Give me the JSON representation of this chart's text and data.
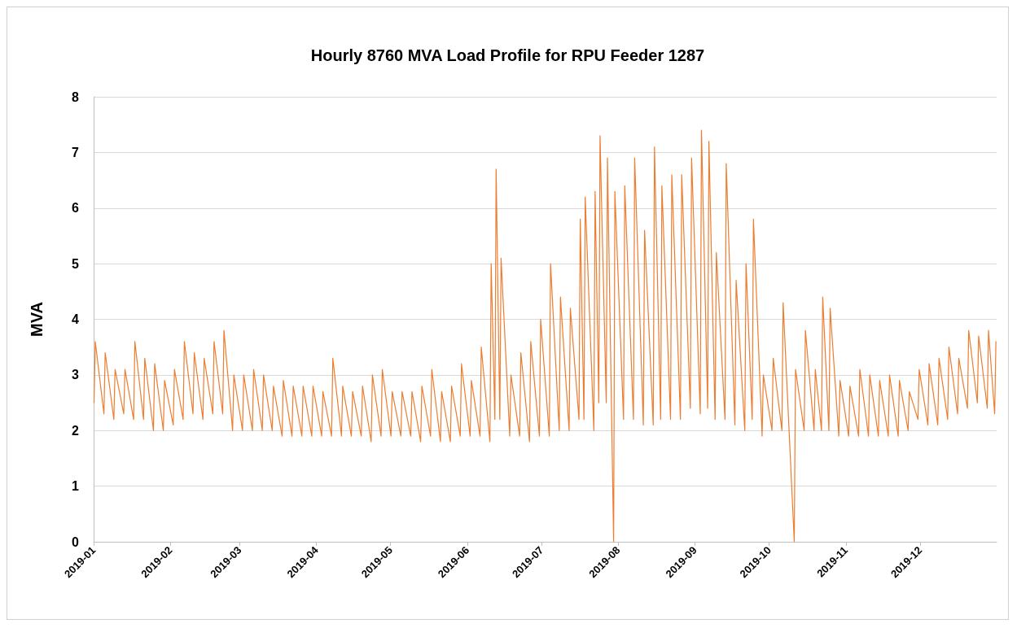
{
  "chart_data": {
    "type": "line",
    "title": "Hourly 8760 MVA Load Profile for RPU Feeder 1287",
    "ylabel": "MVA",
    "color": "#ed7d31",
    "grid": "y",
    "marker": "none",
    "line_style": "solid",
    "xlim": [
      "2019-01-01",
      "2019-12-31T23:00"
    ],
    "xticks": [
      "2019-01",
      "2019-02",
      "2019-03",
      "2019-04",
      "2019-05",
      "2019-06",
      "2019-07",
      "2019-08",
      "2019-09",
      "2019-10",
      "2019-11",
      "2019-12"
    ],
    "ylim": [
      0,
      8
    ],
    "yticks": [
      0,
      1,
      2,
      3,
      4,
      5,
      6,
      7,
      8
    ],
    "x": [
      "2019-01-01T04:00",
      "2019-01-01T16:00",
      "2019-01-05T04:00",
      "2019-01-05T16:00",
      "2019-01-09T04:00",
      "2019-01-09T16:00",
      "2019-01-13T04:00",
      "2019-01-13T16:00",
      "2019-01-17T04:00",
      "2019-01-17T16:00",
      "2019-01-21T04:00",
      "2019-01-21T16:00",
      "2019-01-25T04:00",
      "2019-01-25T16:00",
      "2019-01-29T04:00",
      "2019-01-29T16:00",
      "2019-02-02T04:00",
      "2019-02-02T16:00",
      "2019-02-06T04:00",
      "2019-02-06T16:00",
      "2019-02-10T04:00",
      "2019-02-10T16:00",
      "2019-02-14T04:00",
      "2019-02-14T16:00",
      "2019-02-18T04:00",
      "2019-02-18T16:00",
      "2019-02-22T04:00",
      "2019-02-22T16:00",
      "2019-02-26T04:00",
      "2019-02-26T16:00",
      "2019-03-02T04:00",
      "2019-03-02T16:00",
      "2019-03-06T04:00",
      "2019-03-06T16:00",
      "2019-03-10T04:00",
      "2019-03-10T16:00",
      "2019-03-14T04:00",
      "2019-03-14T16:00",
      "2019-03-18T04:00",
      "2019-03-18T16:00",
      "2019-03-22T04:00",
      "2019-03-22T16:00",
      "2019-03-26T04:00",
      "2019-03-26T16:00",
      "2019-03-30T04:00",
      "2019-03-30T16:00",
      "2019-04-03T04:00",
      "2019-04-03T16:00",
      "2019-04-07T04:00",
      "2019-04-07T16:00",
      "2019-04-11T04:00",
      "2019-04-11T16:00",
      "2019-04-15T04:00",
      "2019-04-15T16:00",
      "2019-04-19T04:00",
      "2019-04-19T16:00",
      "2019-04-23T04:00",
      "2019-04-23T16:00",
      "2019-04-27T04:00",
      "2019-04-27T16:00",
      "2019-05-01T04:00",
      "2019-05-01T16:00",
      "2019-05-05T04:00",
      "2019-05-05T16:00",
      "2019-05-09T04:00",
      "2019-05-09T16:00",
      "2019-05-13T04:00",
      "2019-05-13T16:00",
      "2019-05-17T04:00",
      "2019-05-17T16:00",
      "2019-05-21T04:00",
      "2019-05-21T16:00",
      "2019-05-25T04:00",
      "2019-05-25T16:00",
      "2019-05-29T04:00",
      "2019-05-29T16:00",
      "2019-06-02T04:00",
      "2019-06-02T16:00",
      "2019-06-06T04:00",
      "2019-06-06T16:00",
      "2019-06-10T04:00",
      "2019-06-10T16:00",
      "2019-06-12T04:00",
      "2019-06-12T16:00",
      "2019-06-14T04:00",
      "2019-06-14T16:00",
      "2019-06-18T04:00",
      "2019-06-18T16:00",
      "2019-06-22T04:00",
      "2019-06-22T16:00",
      "2019-06-26T04:00",
      "2019-06-26T16:00",
      "2019-06-30T04:00",
      "2019-06-30T16:00",
      "2019-07-04T04:00",
      "2019-07-04T16:00",
      "2019-07-08T04:00",
      "2019-07-08T16:00",
      "2019-07-12T04:00",
      "2019-07-12T16:00",
      "2019-07-16T04:00",
      "2019-07-16T16:00",
      "2019-07-18T04:00",
      "2019-07-18T16:00",
      "2019-07-22T04:00",
      "2019-07-22T16:00",
      "2019-07-24T04:00",
      "2019-07-24T16:00",
      "2019-07-27T04:00",
      "2019-07-27T16:00",
      "2019-07-30T04:00",
      "2019-07-30T16:00",
      "2019-08-03T04:00",
      "2019-08-03T16:00",
      "2019-08-07T04:00",
      "2019-08-07T16:00",
      "2019-08-11T04:00",
      "2019-08-11T16:00",
      "2019-08-15T04:00",
      "2019-08-15T16:00",
      "2019-08-18T04:00",
      "2019-08-18T16:00",
      "2019-08-22T04:00",
      "2019-08-22T16:00",
      "2019-08-26T04:00",
      "2019-08-26T16:00",
      "2019-08-30T04:00",
      "2019-08-30T16:00",
      "2019-09-03T04:00",
      "2019-09-03T16:00",
      "2019-09-06T04:00",
      "2019-09-06T16:00",
      "2019-09-09T04:00",
      "2019-09-09T16:00",
      "2019-09-13T04:00",
      "2019-09-13T16:00",
      "2019-09-17T04:00",
      "2019-09-17T16:00",
      "2019-09-21T04:00",
      "2019-09-21T16:00",
      "2019-09-24T04:00",
      "2019-09-24T16:00",
      "2019-09-28T04:00",
      "2019-09-28T16:00",
      "2019-10-02T04:00",
      "2019-10-02T16:00",
      "2019-10-06T04:00",
      "2019-10-06T16:00",
      "2019-10-11T04:00",
      "2019-10-11T16:00",
      "2019-10-15T04:00",
      "2019-10-15T16:00",
      "2019-10-19T04:00",
      "2019-10-19T16:00",
      "2019-10-22T04:00",
      "2019-10-22T16:00",
      "2019-10-25T04:00",
      "2019-10-25T16:00",
      "2019-10-29T04:00",
      "2019-10-29T16:00",
      "2019-11-02T04:00",
      "2019-11-02T16:00",
      "2019-11-06T04:00",
      "2019-11-06T16:00",
      "2019-11-10T04:00",
      "2019-11-10T16:00",
      "2019-11-14T04:00",
      "2019-11-14T16:00",
      "2019-11-18T04:00",
      "2019-11-18T16:00",
      "2019-11-22T04:00",
      "2019-11-22T16:00",
      "2019-11-26T04:00",
      "2019-11-26T16:00",
      "2019-11-30T04:00",
      "2019-11-30T16:00",
      "2019-12-04T04:00",
      "2019-12-04T16:00",
      "2019-12-08T04:00",
      "2019-12-08T16:00",
      "2019-12-12T04:00",
      "2019-12-12T16:00",
      "2019-12-16T04:00",
      "2019-12-16T16:00",
      "2019-12-20T04:00",
      "2019-12-20T16:00",
      "2019-12-24T04:00",
      "2019-12-24T16:00",
      "2019-12-28T04:00",
      "2019-12-28T16:00",
      "2019-12-31T04:00",
      "2019-12-31T16:00"
    ],
    "values": [
      2.5,
      3.6,
      2.3,
      3.4,
      2.2,
      3.1,
      2.3,
      3.1,
      2.2,
      3.6,
      2.2,
      3.3,
      2.0,
      3.2,
      2.0,
      2.9,
      2.1,
      3.1,
      2.2,
      3.6,
      2.3,
      3.4,
      2.2,
      3.3,
      2.3,
      3.6,
      2.3,
      3.8,
      2.0,
      3.0,
      2.0,
      3.0,
      2.0,
      3.1,
      2.0,
      3.0,
      2.0,
      2.8,
      1.9,
      2.9,
      1.9,
      2.8,
      1.9,
      2.8,
      1.9,
      2.8,
      1.9,
      2.7,
      1.9,
      3.3,
      1.9,
      2.8,
      1.9,
      2.7,
      1.9,
      2.8,
      1.8,
      3.0,
      1.9,
      3.1,
      1.9,
      2.7,
      1.9,
      2.7,
      1.9,
      2.7,
      1.8,
      2.8,
      1.9,
      3.1,
      1.8,
      2.7,
      1.8,
      2.8,
      1.9,
      3.2,
      1.9,
      2.9,
      1.9,
      3.5,
      1.8,
      5.0,
      2.2,
      6.7,
      2.2,
      5.1,
      1.9,
      3.0,
      1.9,
      3.4,
      1.8,
      3.6,
      1.9,
      4.0,
      1.9,
      5.0,
      2.0,
      4.4,
      2.0,
      4.2,
      2.2,
      5.8,
      2.2,
      6.2,
      2.0,
      6.3,
      2.5,
      7.3,
      2.5,
      6.9,
      0,
      6.3,
      2.2,
      6.4,
      2.2,
      6.9,
      2.1,
      5.6,
      2.1,
      7.1,
      2.2,
      6.4,
      2.2,
      6.6,
      2.2,
      6.6,
      2.4,
      6.9,
      2.3,
      7.4,
      2.4,
      7.2,
      2.2,
      5.2,
      2.2,
      6.8,
      2.1,
      4.7,
      2.0,
      5.0,
      2.2,
      5.8,
      1.9,
      3.0,
      2.0,
      3.3,
      2.0,
      4.3,
      0,
      3.1,
      2.0,
      3.8,
      2.0,
      3.1,
      2.0,
      4.4,
      2.0,
      4.2,
      1.9,
      2.9,
      1.9,
      2.8,
      1.9,
      3.1,
      1.9,
      3.0,
      1.9,
      2.9,
      1.9,
      3.0,
      1.9,
      2.9,
      2.0,
      2.7,
      2.2,
      3.1,
      2.1,
      3.2,
      2.1,
      3.3,
      2.2,
      3.5,
      2.3,
      3.3,
      2.4,
      3.8,
      2.5,
      3.7,
      2.4,
      3.8,
      2.3,
      3.6
    ]
  }
}
